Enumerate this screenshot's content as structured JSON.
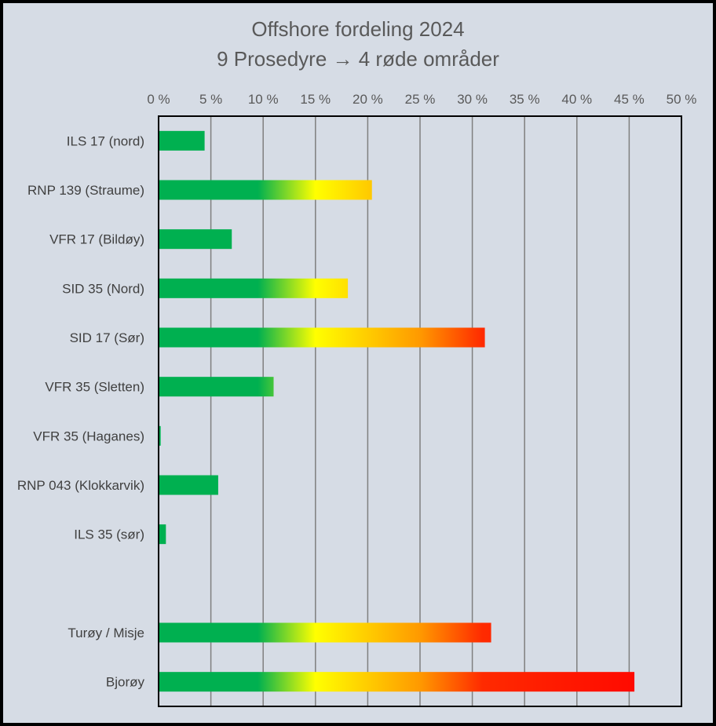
{
  "chart_data": {
    "type": "bar",
    "orientation": "horizontal",
    "title": "Offshore fordeling 2024",
    "subtitle": "9 Prosedyre → 4 røde områder",
    "xlim": [
      0,
      50
    ],
    "xticks": [
      0,
      5,
      10,
      15,
      20,
      25,
      30,
      35,
      40,
      45,
      50
    ],
    "xtick_labels": [
      "0 %",
      "5 %",
      "10 %",
      "15 %",
      "20 %",
      "25 %",
      "30 %",
      "35 %",
      "40 %",
      "45 %",
      "50 %"
    ],
    "grid": true,
    "categories": [
      "ILS 17 (nord)",
      "RNP 139 (Straume)",
      "VFR 17 (Bildøy)",
      "SID 35 (Nord)",
      "SID 17 (Sør)",
      "VFR 35 (Sletten)",
      "VFR 35 (Haganes)",
      "RNP 043 (Klokkarvik)",
      "ILS 35   (sør)",
      "",
      "Turøy / Misje",
      "Bjorøy"
    ],
    "values": [
      4.4,
      20.4,
      7.0,
      18.1,
      31.2,
      11.0,
      0.2,
      5.7,
      0.7,
      null,
      31.8,
      45.5
    ],
    "color_scale": [
      "#00b050",
      "#ffff00",
      "#ff0000"
    ]
  }
}
